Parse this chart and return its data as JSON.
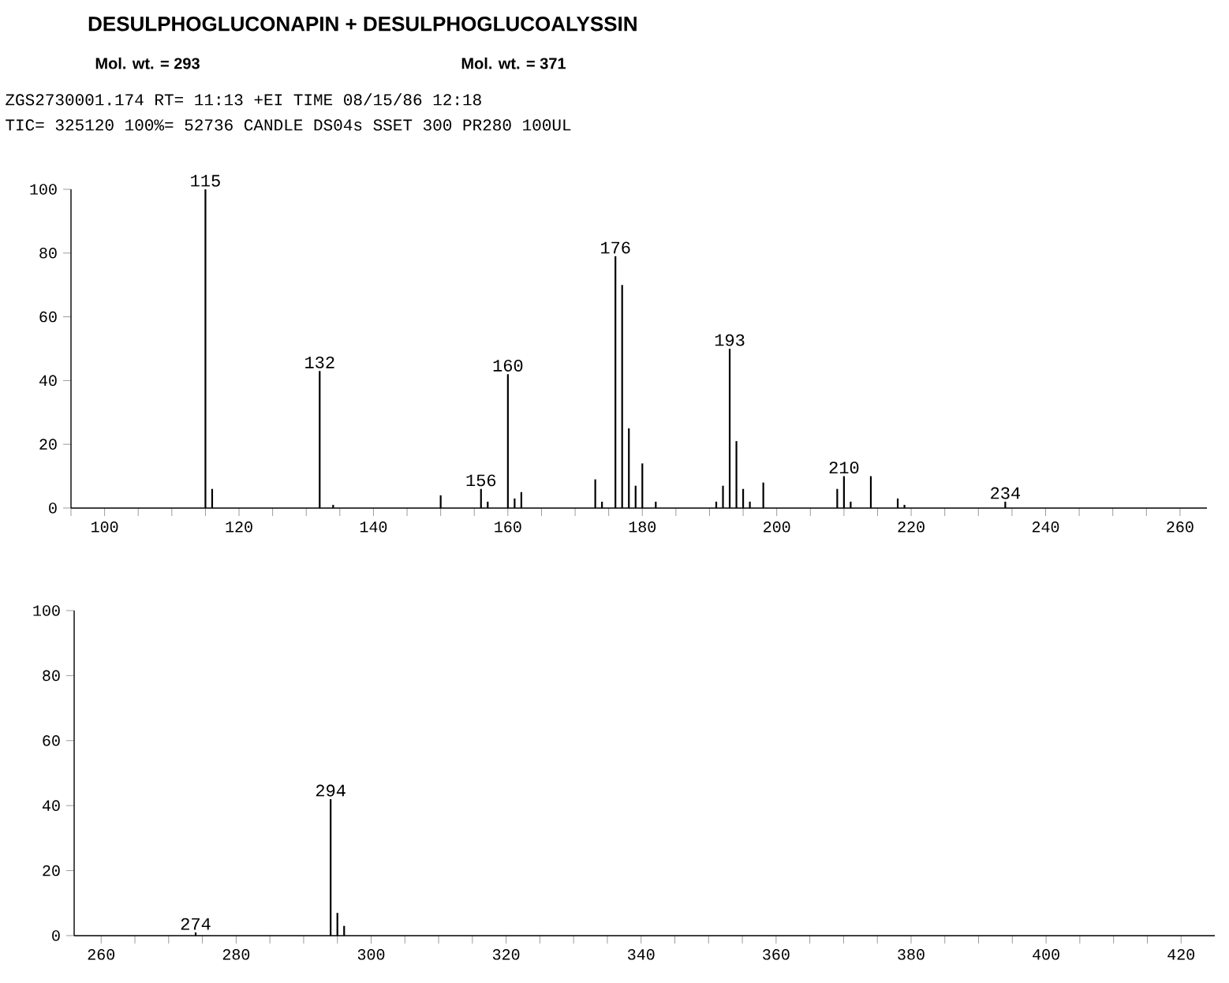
{
  "chart_data": [
    {
      "type": "bar",
      "title": "DESULPHOGLUCONAPIN + DESULPHOGLUCOALYSSIN",
      "annotations": [
        "Mol. wt. = 293",
        "Mol. wt. = 371",
        "ZGS2730001.174 RT= 11:13 +EI TIME 08/15/86 12:18",
        "TIC= 325120 100%= 52736  CANDLE DS04s SSET 300 PR280  100UL",
        {
          "text": "115",
          "x": 115,
          "y": 100
        },
        {
          "text": "132",
          "x": 132,
          "y": 43
        },
        {
          "text": "156",
          "x": 156,
          "y": 6
        },
        {
          "text": "160",
          "x": 160,
          "y": 42
        },
        {
          "text": "176",
          "x": 176,
          "y": 79
        },
        {
          "text": "193",
          "x": 193,
          "y": 50
        },
        {
          "text": "210",
          "x": 210,
          "y": 10
        },
        {
          "text": "234",
          "x": 234,
          "y": 2
        }
      ],
      "x": [
        115,
        116,
        132,
        134,
        150,
        156,
        157,
        160,
        161,
        162,
        173,
        174,
        176,
        177,
        178,
        179,
        180,
        182,
        191,
        192,
        193,
        194,
        195,
        196,
        198,
        209,
        210,
        211,
        214,
        218,
        219,
        234
      ],
      "values": [
        100,
        6,
        43,
        1,
        4,
        6,
        2,
        42,
        3,
        5,
        9,
        2,
        79,
        70,
        25,
        7,
        14,
        2,
        2,
        7,
        50,
        21,
        6,
        2,
        8,
        6,
        10,
        2,
        10,
        3,
        1,
        2
      ],
      "color": "#000000",
      "xlim": [
        95,
        264
      ],
      "ylim": [
        0,
        100
      ],
      "xticks": [
        {
          "value": 95,
          "label": null
        },
        100,
        {
          "value": 105,
          "label": null
        },
        {
          "value": 110,
          "label": null
        },
        {
          "value": 115,
          "label": null
        },
        120,
        {
          "value": 125,
          "label": null
        },
        {
          "value": 130,
          "label": null
        },
        {
          "value": 135,
          "label": null
        },
        140,
        {
          "value": 145,
          "label": null
        },
        {
          "value": 150,
          "label": null
        },
        {
          "value": 155,
          "label": null
        },
        160,
        {
          "value": 165,
          "label": null
        },
        {
          "value": 170,
          "label": null
        },
        {
          "value": 175,
          "label": null
        },
        180,
        {
          "value": 185,
          "label": null
        },
        {
          "value": 190,
          "label": null
        },
        {
          "value": 195,
          "label": null
        },
        200,
        {
          "value": 205,
          "label": null
        },
        {
          "value": 210,
          "label": null
        },
        {
          "value": 215,
          "label": null
        },
        220,
        {
          "value": 225,
          "label": null
        },
        {
          "value": 230,
          "label": null
        },
        {
          "value": 235,
          "label": null
        },
        240,
        {
          "value": 245,
          "label": null
        },
        {
          "value": 250,
          "label": null
        },
        {
          "value": 255,
          "label": null
        },
        260
      ],
      "yticks": [
        0,
        20,
        40,
        60,
        80,
        100
      ]
    },
    {
      "type": "bar",
      "annotations": [
        {
          "text": "274",
          "x": 274,
          "y": 1
        },
        {
          "text": "294",
          "x": 294,
          "y": 42
        }
      ],
      "x": [
        274,
        294,
        295,
        296
      ],
      "values": [
        1,
        42,
        7,
        3
      ],
      "color": "#000000",
      "xlim": [
        256,
        425
      ],
      "ylim": [
        0,
        100
      ],
      "xticks": [
        260,
        {
          "value": 265,
          "label": null
        },
        {
          "value": 270,
          "label": null
        },
        {
          "value": 275,
          "label": null
        },
        280,
        {
          "value": 285,
          "label": null
        },
        {
          "value": 290,
          "label": null
        },
        {
          "value": 295,
          "label": null
        },
        300,
        {
          "value": 305,
          "label": null
        },
        {
          "value": 310,
          "label": null
        },
        {
          "value": 315,
          "label": null
        },
        320,
        {
          "value": 325,
          "label": null
        },
        {
          "value": 330,
          "label": null
        },
        {
          "value": 335,
          "label": null
        },
        340,
        {
          "value": 345,
          "label": null
        },
        {
          "value": 350,
          "label": null
        },
        {
          "value": 355,
          "label": null
        },
        360,
        {
          "value": 365,
          "label": null
        },
        {
          "value": 370,
          "label": null
        },
        {
          "value": 375,
          "label": null
        },
        380,
        {
          "value": 385,
          "label": null
        },
        {
          "value": 390,
          "label": null
        },
        {
          "value": 395,
          "label": null
        },
        400,
        {
          "value": 405,
          "label": null
        },
        {
          "value": 410,
          "label": null
        },
        {
          "value": 415,
          "label": null
        },
        420
      ],
      "yticks": [
        0,
        20,
        40,
        60,
        80,
        100
      ]
    }
  ]
}
